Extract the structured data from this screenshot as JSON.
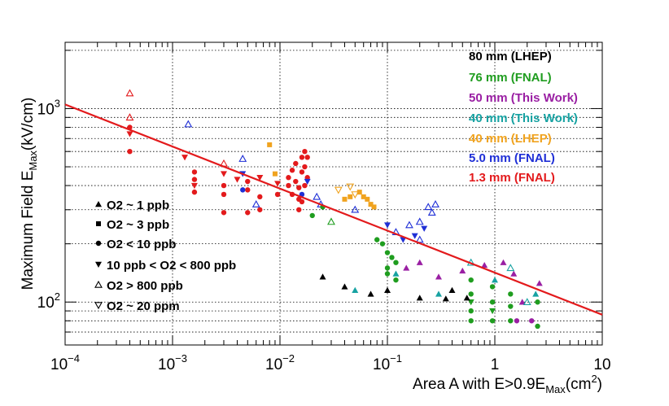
{
  "chart_data": {
    "type": "scatter",
    "title": "",
    "xlabel_parts": [
      "Area A with E>0.9E",
      "Max",
      "(cm",
      "2",
      ")"
    ],
    "ylabel_parts": [
      "Maximum Field E",
      "Max",
      "(kV/cm)"
    ],
    "x_scale": "log",
    "y_scale": "log",
    "xlim": [
      0.0001,
      10
    ],
    "ylim": [
      60,
      2200
    ],
    "grid": true,
    "x_ticks": [
      {
        "base": "10",
        "exp": "−4",
        "value": 0.0001
      },
      {
        "base": "10",
        "exp": "−3",
        "value": 0.001
      },
      {
        "base": "10",
        "exp": "−2",
        "value": 0.01
      },
      {
        "base": "10",
        "exp": "−1",
        "value": 0.1
      },
      {
        "base": "1",
        "exp": "",
        "value": 1
      },
      {
        "base": "10",
        "exp": "",
        "value": 10
      }
    ],
    "y_ticks": [
      {
        "base": "10",
        "exp": "2",
        "value": 100
      },
      {
        "base": "10",
        "exp": "3",
        "value": 1000
      }
    ],
    "fit_line": {
      "color": "#e31a1c",
      "points": [
        [
          0.0001,
          1050
        ],
        [
          10,
          86
        ]
      ]
    },
    "legend_series": {
      "position": "top-right",
      "entries": [
        {
          "label": "80 mm (LHEP)",
          "color": "#000000"
        },
        {
          "label": "76 mm (FNAL)",
          "color": "#1f9d1f"
        },
        {
          "label": "50 mm (This Work)",
          "color": "#9a1fa3"
        },
        {
          "label": "40 mm (This Work)",
          "color": "#17a2a2"
        },
        {
          "label": "40 mm (LHEP)",
          "color": "#f0a31f"
        },
        {
          "label": "5.0 mm (FNAL)",
          "color": "#1f2fd6"
        },
        {
          "label": "1.3 mm (FNAL)",
          "color": "#e31a1c"
        }
      ]
    },
    "legend_markers": {
      "position": "bottom-left",
      "entries": [
        {
          "label": "O2 ~ 1 ppb",
          "marker": "triangle-up-filled"
        },
        {
          "label": "O2 ~ 3 ppb",
          "marker": "square-filled"
        },
        {
          "label": "O2 < 10 ppb",
          "marker": "circle-filled"
        },
        {
          "label": "10 ppb < O2 < 800 ppb",
          "marker": "triangle-down-filled"
        },
        {
          "label": "O2 > 800 ppb",
          "marker": "triangle-up-open"
        },
        {
          "label": "O2 ~ 20 ppm",
          "marker": "triangle-down-open"
        }
      ]
    },
    "series": [
      {
        "name": "1.3 mm (FNAL)",
        "color": "#e31a1c",
        "points": [
          [
            0.0004,
            1200,
            "tu-o"
          ],
          [
            0.0004,
            900,
            "tu-o"
          ],
          [
            0.0004,
            800,
            "c"
          ],
          [
            0.0004,
            740,
            "td"
          ],
          [
            0.0004,
            600,
            "c"
          ],
          [
            0.0013,
            560,
            "td"
          ],
          [
            0.0016,
            470,
            "c"
          ],
          [
            0.0016,
            430,
            "c"
          ],
          [
            0.0016,
            400,
            "td"
          ],
          [
            0.0016,
            370,
            "c"
          ],
          [
            0.003,
            520,
            "tu-o"
          ],
          [
            0.003,
            460,
            "td"
          ],
          [
            0.003,
            400,
            "c"
          ],
          [
            0.003,
            360,
            "c"
          ],
          [
            0.003,
            290,
            "c"
          ],
          [
            0.004,
            430,
            "td"
          ],
          [
            0.005,
            420,
            "c"
          ],
          [
            0.005,
            380,
            "c"
          ],
          [
            0.005,
            290,
            "c"
          ],
          [
            0.0065,
            440,
            "td"
          ],
          [
            0.0065,
            350,
            "c"
          ],
          [
            0.0065,
            300,
            "c"
          ],
          [
            0.0095,
            410,
            "td"
          ],
          [
            0.0095,
            360,
            "c"
          ],
          [
            0.012,
            440,
            "c"
          ],
          [
            0.012,
            400,
            "c"
          ],
          [
            0.013,
            480,
            "c"
          ],
          [
            0.013,
            360,
            "c"
          ],
          [
            0.014,
            520,
            "c"
          ],
          [
            0.014,
            420,
            "c"
          ],
          [
            0.015,
            390,
            "c"
          ],
          [
            0.015,
            340,
            "c"
          ],
          [
            0.016,
            560,
            "c"
          ],
          [
            0.016,
            470,
            "c"
          ],
          [
            0.016,
            330,
            "c"
          ],
          [
            0.017,
            600,
            "c"
          ],
          [
            0.017,
            500,
            "c"
          ],
          [
            0.017,
            400,
            "c"
          ],
          [
            0.018,
            440,
            "c"
          ],
          [
            0.018,
            560,
            "c"
          ],
          [
            0.015,
            300,
            "c"
          ]
        ]
      },
      {
        "name": "5.0 mm (FNAL)",
        "color": "#1f2fd6",
        "points": [
          [
            0.0014,
            830,
            "tu-o"
          ],
          [
            0.0045,
            550,
            "tu-o"
          ],
          [
            0.0045,
            460,
            "td"
          ],
          [
            0.0045,
            380,
            "c"
          ],
          [
            0.006,
            320,
            "tu-o"
          ],
          [
            0.016,
            360,
            "c"
          ],
          [
            0.018,
            420,
            "td"
          ],
          [
            0.024,
            320,
            "tu-o"
          ],
          [
            0.022,
            350,
            "tu-o"
          ],
          [
            0.05,
            300,
            "tu-o"
          ],
          [
            0.1,
            250,
            "td"
          ],
          [
            0.12,
            230,
            "tu-o"
          ],
          [
            0.14,
            210,
            "td"
          ],
          [
            0.16,
            250,
            "tu-o"
          ],
          [
            0.18,
            220,
            "td"
          ],
          [
            0.2,
            260,
            "tu-o"
          ],
          [
            0.22,
            240,
            "td"
          ],
          [
            0.24,
            310,
            "tu-o"
          ],
          [
            0.26,
            290,
            "tu-o"
          ],
          [
            0.28,
            320,
            "tu-o"
          ],
          [
            0.2,
            210,
            "tu-o"
          ]
        ]
      },
      {
        "name": "40 mm (LHEP)",
        "color": "#f0a31f",
        "points": [
          [
            0.008,
            650,
            "s"
          ],
          [
            0.009,
            460,
            "s"
          ],
          [
            0.04,
            340,
            "s"
          ],
          [
            0.045,
            350,
            "s"
          ],
          [
            0.05,
            360,
            "td-o"
          ],
          [
            0.055,
            370,
            "s"
          ],
          [
            0.06,
            350,
            "s"
          ],
          [
            0.065,
            340,
            "s"
          ],
          [
            0.07,
            320,
            "s"
          ],
          [
            0.075,
            310,
            "s"
          ],
          [
            0.035,
            380,
            "td-o"
          ],
          [
            0.045,
            395,
            "td-o"
          ]
        ]
      },
      {
        "name": "76 mm (FNAL)",
        "color": "#1f9d1f",
        "points": [
          [
            0.02,
            280,
            "c"
          ],
          [
            0.025,
            310,
            "c"
          ],
          [
            0.03,
            260,
            "tu-o"
          ],
          [
            0.08,
            210,
            "c"
          ],
          [
            0.09,
            200,
            "c"
          ],
          [
            0.1,
            180,
            "c"
          ],
          [
            0.11,
            170,
            "c"
          ],
          [
            0.12,
            160,
            "c"
          ],
          [
            0.1,
            150,
            "c"
          ],
          [
            0.1,
            140,
            "c"
          ],
          [
            0.12,
            130,
            "c"
          ],
          [
            0.6,
            130,
            "c"
          ],
          [
            0.6,
            110,
            "c"
          ],
          [
            0.6,
            100,
            "td"
          ],
          [
            0.6,
            90,
            "c"
          ],
          [
            0.6,
            80,
            "c"
          ],
          [
            0.95,
            120,
            "c"
          ],
          [
            0.95,
            100,
            "c"
          ],
          [
            0.95,
            90,
            "td"
          ],
          [
            0.95,
            80,
            "c"
          ],
          [
            1.4,
            110,
            "c"
          ],
          [
            1.4,
            95,
            "c"
          ],
          [
            1.4,
            80,
            "c"
          ],
          [
            2.5,
            100,
            "c"
          ],
          [
            2.5,
            75,
            "c"
          ]
        ]
      },
      {
        "name": "50 mm (This Work)",
        "color": "#9a1fa3",
        "points": [
          [
            0.15,
            150,
            "tu"
          ],
          [
            0.3,
            135,
            "tu"
          ],
          [
            0.5,
            145,
            "tu"
          ],
          [
            0.8,
            155,
            "tu"
          ],
          [
            1.2,
            160,
            "tu"
          ],
          [
            1.5,
            140,
            "tu"
          ],
          [
            1.8,
            100,
            "tu"
          ],
          [
            2.2,
            80,
            "c"
          ],
          [
            2.6,
            125,
            "tu"
          ],
          [
            0.2,
            160,
            "tu"
          ],
          [
            1.6,
            80,
            "c"
          ]
        ]
      },
      {
        "name": "40 mm (This Work)",
        "color": "#17a2a2",
        "points": [
          [
            0.05,
            115,
            "tu"
          ],
          [
            0.12,
            140,
            "tu"
          ],
          [
            0.3,
            110,
            "tu"
          ],
          [
            0.6,
            160,
            "tu-o"
          ],
          [
            1.0,
            130,
            "tu"
          ],
          [
            1.4,
            150,
            "tu-o"
          ],
          [
            2.0,
            100,
            "tu-o"
          ],
          [
            2.4,
            110,
            "tu"
          ]
        ]
      },
      {
        "name": "80 mm (LHEP)",
        "color": "#000000",
        "points": [
          [
            0.025,
            135,
            "tu"
          ],
          [
            0.04,
            120,
            "tu"
          ],
          [
            0.07,
            110,
            "tu"
          ],
          [
            0.1,
            115,
            "tu"
          ],
          [
            0.2,
            105,
            "tu"
          ],
          [
            0.35,
            104,
            "tu"
          ],
          [
            0.4,
            115,
            "tu"
          ],
          [
            0.55,
            105,
            "tu"
          ]
        ]
      }
    ]
  }
}
